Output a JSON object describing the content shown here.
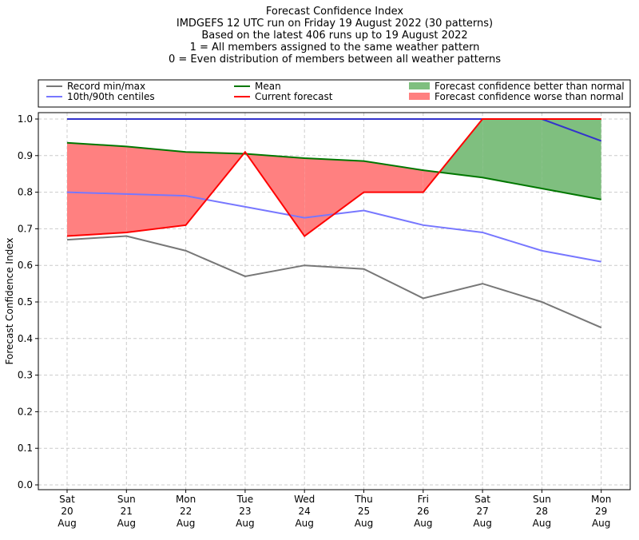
{
  "chart_data": {
    "type": "line",
    "title_lines": [
      "Forecast Confidence Index",
      "IMDGEFS 12 UTC run on Friday 19 August 2022 (30 patterns)",
      "Based on the latest 406 runs up to 19 August 2022",
      "1 = All members assigned to the same weather pattern",
      "0 = Even distribution of members between all weather patterns"
    ],
    "ylabel": "Forecast Confidence Index",
    "ylim": [
      0,
      1.0
    ],
    "yticks": [
      "0.0",
      "0.1",
      "0.2",
      "0.3",
      "0.4",
      "0.5",
      "0.6",
      "0.7",
      "0.8",
      "0.9",
      "1.0"
    ],
    "grid": true,
    "legend_placement": "top",
    "categories": [
      [
        "Sat",
        "20",
        "Aug"
      ],
      [
        "Sun",
        "21",
        "Aug"
      ],
      [
        "Mon",
        "22",
        "Aug"
      ],
      [
        "Tue",
        "23",
        "Aug"
      ],
      [
        "Wed",
        "24",
        "Aug"
      ],
      [
        "Thu",
        "25",
        "Aug"
      ],
      [
        "Fri",
        "26",
        "Aug"
      ],
      [
        "Sat",
        "27",
        "Aug"
      ],
      [
        "Sun",
        "28",
        "Aug"
      ],
      [
        "Mon",
        "29",
        "Aug"
      ]
    ],
    "series": [
      {
        "key": "record_max",
        "values": [
          1.0,
          1.0,
          1.0,
          1.0,
          1.0,
          1.0,
          1.0,
          1.0,
          1.0,
          0.94
        ],
        "color": "#3333cc"
      },
      {
        "key": "record_min",
        "values": [
          0.67,
          0.68,
          0.64,
          0.57,
          0.6,
          0.59,
          0.51,
          0.55,
          0.5,
          0.43
        ],
        "color": "#777777"
      },
      {
        "key": "p10_90",
        "values": [
          0.8,
          0.795,
          0.79,
          0.76,
          0.73,
          0.75,
          0.71,
          0.69,
          0.64,
          0.61
        ],
        "color": "#7777ff"
      },
      {
        "key": "mean",
        "values": [
          0.935,
          0.925,
          0.91,
          0.905,
          0.893,
          0.885,
          0.86,
          0.84,
          0.81,
          0.78
        ],
        "color": "#007700"
      },
      {
        "key": "current",
        "values": [
          0.68,
          0.69,
          0.71,
          0.91,
          0.68,
          0.8,
          0.8,
          1.0,
          1.0,
          1.0
        ],
        "color": "#ff0000"
      }
    ],
    "fill_better_color": "#7fbf7f",
    "fill_worse_color": "#ff8080"
  },
  "legend": [
    {
      "label": "Record min/max",
      "color": "#777777",
      "kind": "line"
    },
    {
      "label": "10th/90th centiles",
      "color": "#7777ff",
      "kind": "line"
    },
    {
      "label": "Mean",
      "color": "#007700",
      "kind": "line"
    },
    {
      "label": "Current forecast",
      "color": "#ff0000",
      "kind": "line"
    },
    {
      "label": "Forecast confidence better than normal",
      "color": "#7fbf7f",
      "kind": "patch"
    },
    {
      "label": "Forecast confidence worse than normal",
      "color": "#ff8080",
      "kind": "patch"
    }
  ]
}
